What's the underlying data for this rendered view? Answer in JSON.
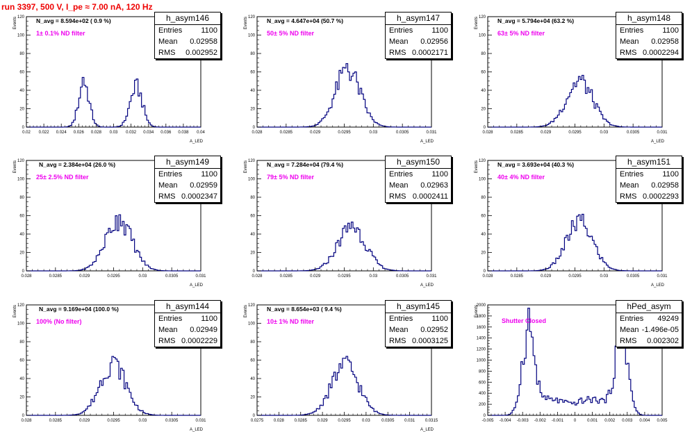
{
  "run_title": "run 3397,   500 V, I_pe ≈ 7.00 nA, 120 Hz",
  "colors": {
    "title": "#ee0000",
    "hist": "#00007f",
    "annotation": "#ee00ee",
    "axis": "#000000"
  },
  "chart_data": [
    {
      "type": "histogram",
      "title": "h_asym146",
      "navg": "N_avg = 8.594e+02 ( 0.9 %)",
      "filter": "1± 0.1% ND filter",
      "entries_label": "Entries",
      "mean_label": "Mean",
      "rms_label": "RMS",
      "entries": "1100",
      "mean": "0.02958",
      "rms": "0.002952",
      "xlabel": "A_LED",
      "ylabel": "Events",
      "xlim": [
        0.02,
        0.04
      ],
      "ylim": [
        0,
        120
      ],
      "xticks": [
        "0.02",
        "0.022",
        "0.024",
        "0.026",
        "0.028",
        "0.03",
        "0.032",
        "0.034",
        "0.036",
        "0.038",
        "0.04"
      ],
      "yticks": [
        "0",
        "20",
        "40",
        "60",
        "80",
        "100",
        "120"
      ],
      "peaks": [
        {
          "mu": 0.0266,
          "sigma": 0.0006,
          "amp": 48
        },
        {
          "mu": 0.0326,
          "sigma": 0.0007,
          "amp": 44
        }
      ],
      "peak_y": [
        54,
        51
      ]
    },
    {
      "type": "histogram",
      "title": "h_asym147",
      "navg": "N_avg = 4.647e+04 (50.7 %)",
      "filter": "50± 5% ND filter",
      "entries_label": "Entries",
      "mean_label": "Mean",
      "rms_label": "RMS",
      "entries": "1100",
      "mean": "0.02956",
      "rms": "0.0002171",
      "xlabel": "A_LED",
      "ylabel": "Events",
      "xlim": [
        0.028,
        0.031
      ],
      "ylim": [
        0,
        120
      ],
      "xticks": [
        "0.028",
        "0.0285",
        "0.029",
        "0.0295",
        "0.03",
        "0.0305",
        "0.031"
      ],
      "yticks": [
        "0",
        "20",
        "40",
        "60",
        "80",
        "100",
        "120"
      ],
      "peaks": [
        {
          "mu": 0.02956,
          "sigma": 0.000215,
          "amp": 62
        }
      ],
      "peak_y": [
        69
      ]
    },
    {
      "type": "histogram",
      "title": "h_asym148",
      "navg": "N_avg = 5.794e+04 (63.2 %)",
      "filter": "63± 5% ND filter",
      "entries_label": "Entries",
      "mean_label": "Mean",
      "rms_label": "RMS",
      "entries": "1100",
      "mean": "0.02958",
      "rms": "0.0002294",
      "xlabel": "A_LED",
      "ylabel": "Events",
      "xlim": [
        0.028,
        0.031
      ],
      "ylim": [
        0,
        120
      ],
      "xticks": [
        "0.028",
        "0.0285",
        "0.029",
        "0.0295",
        "0.03",
        "0.0305",
        "0.031"
      ],
      "yticks": [
        "0",
        "20",
        "40",
        "60",
        "80",
        "100",
        "120"
      ],
      "peaks": [
        {
          "mu": 0.02958,
          "sigma": 0.000228,
          "amp": 50
        }
      ],
      "peak_y": [
        55
      ]
    },
    {
      "type": "histogram",
      "title": "h_asym149",
      "navg": "N_avg = 2.384e+04 (26.0 %)",
      "filter": "25± 2.5% ND filter",
      "entries_label": "Entries",
      "mean_label": "Mean",
      "rms_label": "RMS",
      "entries": "1100",
      "mean": "0.02959",
      "rms": "0.0002347",
      "xlabel": "A_LED",
      "ylabel": "Events",
      "xlim": [
        0.028,
        0.031
      ],
      "ylim": [
        0,
        120
      ],
      "xticks": [
        "0.028",
        "0.0285",
        "0.029",
        "0.0295",
        "0.03",
        "0.0305",
        "0.031"
      ],
      "yticks": [
        "0",
        "20",
        "40",
        "60",
        "80",
        "100",
        "120"
      ],
      "peaks": [
        {
          "mu": 0.02959,
          "sigma": 0.00023,
          "amp": 55
        }
      ],
      "peak_y": [
        61
      ]
    },
    {
      "type": "histogram",
      "title": "h_asym150",
      "navg": "N_avg = 7.284e+04 (79.4 %)",
      "filter": "79± 5% ND filter",
      "entries_label": "Entries",
      "mean_label": "Mean",
      "rms_label": "RMS",
      "entries": "1100",
      "mean": "0.02963",
      "rms": "0.0002411",
      "xlabel": "A_LED",
      "ylabel": "Events",
      "xlim": [
        0.028,
        0.031
      ],
      "ylim": [
        0,
        120
      ],
      "xticks": [
        "0.028",
        "0.0285",
        "0.029",
        "0.0295",
        "0.03",
        "0.0305",
        "0.031"
      ],
      "yticks": [
        "0",
        "20",
        "40",
        "60",
        "80",
        "100",
        "120"
      ],
      "peaks": [
        {
          "mu": 0.02963,
          "sigma": 0.00024,
          "amp": 48
        }
      ],
      "peak_y": [
        53
      ]
    },
    {
      "type": "histogram",
      "title": "h_asym151",
      "navg": "N_avg = 3.693e+04 (40.3 %)",
      "filter": "40± 4% ND filter",
      "entries_label": "Entries",
      "mean_label": "Mean",
      "rms_label": "RMS",
      "entries": "1100",
      "mean": "0.02958",
      "rms": "0.0002293",
      "xlabel": "A_LED",
      "ylabel": "Events",
      "xlim": [
        0.028,
        0.031
      ],
      "ylim": [
        0,
        120
      ],
      "xticks": [
        "0.028",
        "0.0285",
        "0.029",
        "0.0295",
        "0.03",
        "0.0305",
        "0.031"
      ],
      "yticks": [
        "0",
        "20",
        "40",
        "60",
        "80",
        "100",
        "120"
      ],
      "peaks": [
        {
          "mu": 0.02958,
          "sigma": 0.000228,
          "amp": 53
        }
      ],
      "peak_y": [
        61
      ]
    },
    {
      "type": "histogram",
      "title": "h_asym144",
      "navg": "N_avg = 9.169e+04 (100.0 %)",
      "filter": "100% (No filter)",
      "entries_label": "Entries",
      "mean_label": "Mean",
      "rms_label": "RMS",
      "entries": "1100",
      "mean": "0.02949",
      "rms": "0.0002229",
      "xlabel": "A_LED",
      "ylabel": "Events",
      "xlim": [
        0.028,
        0.031
      ],
      "ylim": [
        0,
        120
      ],
      "xticks": [
        "0.028",
        "0.0285",
        "0.029",
        "0.0295",
        "0.03",
        "0.0305",
        "0.031"
      ],
      "yticks": [
        "0",
        "20",
        "40",
        "60",
        "80",
        "100",
        "120"
      ],
      "peaks": [
        {
          "mu": 0.02949,
          "sigma": 0.000222,
          "amp": 56
        }
      ],
      "peak_y": [
        64
      ]
    },
    {
      "type": "histogram",
      "title": "h_asym145",
      "navg": "N_avg = 8.654e+03 ( 9.4 %)",
      "filter": "10± 1% ND filter",
      "entries_label": "Entries",
      "mean_label": "Mean",
      "rms_label": "RMS",
      "entries": "1100",
      "mean": "0.02952",
      "rms": "0.0003125",
      "xlabel": "A_LED",
      "ylabel": "Events",
      "xlim": [
        0.0275,
        0.0315
      ],
      "ylim": [
        0,
        120
      ],
      "xticks": [
        "0.0275",
        "0.028",
        "0.0285",
        "0.029",
        "0.0295",
        "0.03",
        "0.0305",
        "0.031",
        "0.0315"
      ],
      "yticks": [
        "0",
        "20",
        "40",
        "60",
        "80",
        "100",
        "120"
      ],
      "peaks": [
        {
          "mu": 0.02952,
          "sigma": 0.00031,
          "amp": 55
        }
      ],
      "peak_y": [
        62
      ]
    },
    {
      "type": "histogram",
      "title": "hPed_asym",
      "navg": "",
      "filter": "Shutter Closed",
      "entries_label": "Entries",
      "mean_label": "Mean",
      "rms_label": "RMS",
      "entries": "49249",
      "mean": "-1.496e-05",
      "rms": "0.002302",
      "xlabel": "",
      "ylabel": "Events",
      "xlim": [
        -0.005,
        0.005
      ],
      "ylim": [
        0,
        2000
      ],
      "xticks": [
        "-0.005",
        "-0.004",
        "-0.003",
        "-0.002",
        "-0.001",
        "0",
        "0.001",
        "0.002",
        "0.003",
        "0.004",
        "0.005"
      ],
      "yticks": [
        "0",
        "200",
        "400",
        "600",
        "800",
        "1000",
        "1200",
        "1400",
        "1600",
        "1800",
        "2000"
      ],
      "peaks": [
        {
          "mu": -0.0027,
          "sigma": 0.00035,
          "amp": 1450
        },
        {
          "mu": 0.0027,
          "sigma": 0.00035,
          "amp": 1450
        }
      ],
      "baseline": {
        "level": 220,
        "from": -0.0027,
        "to": 0.0027
      },
      "peak_y": [
        1940,
        1940
      ]
    }
  ]
}
